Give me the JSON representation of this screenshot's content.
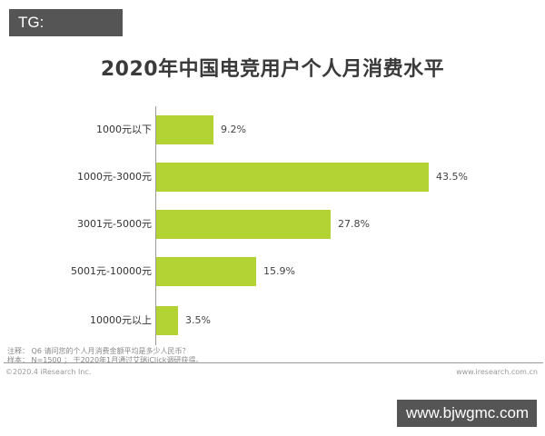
{
  "watermarks": {
    "top_left": "TG: MYYJJPP",
    "bottom_right": "www.bjwgmc.com"
  },
  "colors": {
    "bar": "#b3d234",
    "title": "#3a3a3a",
    "watermark_bg": "#555555"
  },
  "chart_data": {
    "type": "bar",
    "orientation": "horizontal",
    "title": "2020年中国电竞用户个人月消费水平",
    "xlabel": "",
    "ylabel": "",
    "categories": [
      "1000元以下",
      "1000元-3000元",
      "3001元-5000元",
      "5001元-10000元",
      "10000元以上"
    ],
    "values": [
      9.2,
      43.5,
      27.8,
      15.9,
      3.5
    ],
    "value_labels": [
      "9.2%",
      "43.5%",
      "27.8%",
      "15.9%",
      "3.5%"
    ],
    "unit": "%",
    "grid": false,
    "legend": null
  },
  "notes": {
    "line1": "注释：  Q6 请问您的个人月消费金额平均是多少人民币？",
    "line2": "样本：  N=1500 ；  于2020年1月通过艾瑞iClick调研获得。"
  },
  "footer": {
    "copyright": "©2020.4 iResearch Inc.",
    "website": "www.iresearch.com.cn"
  }
}
